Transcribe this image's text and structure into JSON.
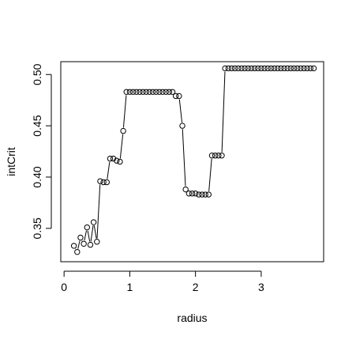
{
  "chart_data": {
    "type": "line",
    "style": "b",
    "title": "",
    "xlabel": "radius",
    "ylabel": "intCrit",
    "x_ticks": [
      0,
      1,
      2,
      3
    ],
    "y_ticks": [
      0.35,
      0.4,
      0.45,
      0.5
    ],
    "y_tick_labels": [
      "0.35",
      "0.40",
      "0.45",
      "0.50"
    ],
    "x_tick_labels": [
      "0",
      "1",
      "2",
      "3"
    ],
    "xlim": [
      -0.05,
      3.95
    ],
    "ylim": [
      0.3175,
      0.5125
    ],
    "grid": false,
    "legend": "none",
    "colors": {
      "points": "#000000",
      "line": "#000000",
      "frame": "#000000"
    },
    "series": [
      {
        "x": [
          0.15,
          0.2,
          0.25,
          0.3,
          0.35,
          0.4,
          0.45,
          0.5,
          0.55,
          0.6,
          0.65,
          0.7,
          0.75,
          0.8,
          0.85,
          0.9,
          0.95,
          1.0,
          1.05,
          1.1,
          1.15,
          1.2,
          1.25,
          1.3,
          1.35,
          1.4,
          1.45,
          1.5,
          1.55,
          1.6,
          1.65,
          1.7,
          1.75,
          1.8,
          1.85,
          1.9,
          1.95,
          2.0,
          2.05,
          2.1,
          2.15,
          2.2,
          2.25,
          2.3,
          2.35,
          2.4,
          2.45,
          2.5,
          2.55,
          2.6,
          2.65,
          2.7,
          2.75,
          2.8,
          2.85,
          2.9,
          2.95,
          3.0,
          3.05,
          3.1,
          3.15,
          3.2,
          3.25,
          3.3,
          3.35,
          3.4,
          3.45,
          3.5,
          3.55,
          3.6,
          3.65,
          3.7,
          3.75,
          3.8
        ],
        "y": [
          0.333,
          0.327,
          0.341,
          0.335,
          0.351,
          0.334,
          0.356,
          0.337,
          0.396,
          0.395,
          0.395,
          0.418,
          0.418,
          0.416,
          0.415,
          0.445,
          0.483,
          0.483,
          0.483,
          0.483,
          0.483,
          0.483,
          0.483,
          0.483,
          0.483,
          0.483,
          0.483,
          0.483,
          0.483,
          0.483,
          0.483,
          0.479,
          0.479,
          0.45,
          0.388,
          0.384,
          0.384,
          0.384,
          0.383,
          0.383,
          0.383,
          0.383,
          0.421,
          0.421,
          0.421,
          0.421,
          0.506,
          0.506,
          0.506,
          0.506,
          0.506,
          0.506,
          0.506,
          0.506,
          0.506,
          0.506,
          0.506,
          0.506,
          0.506,
          0.506,
          0.506,
          0.506,
          0.506,
          0.506,
          0.506,
          0.506,
          0.506,
          0.506,
          0.506,
          0.506,
          0.506,
          0.506,
          0.506,
          0.506
        ]
      }
    ]
  }
}
